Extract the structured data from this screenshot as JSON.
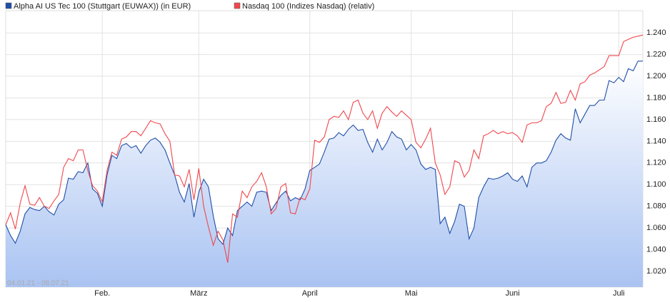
{
  "chart_data": {
    "type": "line",
    "date_range": "04.01.21 - 08.07.21",
    "series": [
      {
        "name": "Alpha AI US Tec 100 (Stuttgart (EUWAX)) (in EUR)",
        "color": "#1f4fa8",
        "area": true,
        "values": [
          1.063,
          1.053,
          1.046,
          1.057,
          1.073,
          1.079,
          1.077,
          1.076,
          1.08,
          1.075,
          1.072,
          1.082,
          1.086,
          1.106,
          1.105,
          1.112,
          1.111,
          1.12,
          1.096,
          1.092,
          1.08,
          1.109,
          1.127,
          1.124,
          1.136,
          1.138,
          1.134,
          1.136,
          1.129,
          1.136,
          1.141,
          1.143,
          1.139,
          1.132,
          1.12,
          1.109,
          1.093,
          1.084,
          1.101,
          1.07,
          1.093,
          1.105,
          1.098,
          1.071,
          1.05,
          1.045,
          1.06,
          1.053,
          1.076,
          1.08,
          1.084,
          1.08,
          1.093,
          1.094,
          1.093,
          1.076,
          1.083,
          1.09,
          1.094,
          1.085,
          1.088,
          1.086,
          1.096,
          1.113,
          1.116,
          1.119,
          1.13,
          1.142,
          1.143,
          1.148,
          1.145,
          1.151,
          1.155,
          1.15,
          1.151,
          1.139,
          1.13,
          1.142,
          1.132,
          1.139,
          1.149,
          1.144,
          1.142,
          1.132,
          1.137,
          1.132,
          1.119,
          1.114,
          1.116,
          1.114,
          1.064,
          1.07,
          1.055,
          1.066,
          1.082,
          1.08,
          1.05,
          1.06,
          1.088,
          1.098,
          1.106,
          1.105,
          1.106,
          1.108,
          1.111,
          1.105,
          1.103,
          1.108,
          1.098,
          1.116,
          1.12,
          1.12,
          1.122,
          1.13,
          1.141,
          1.147,
          1.143,
          1.141,
          1.17,
          1.157,
          1.165,
          1.173,
          1.173,
          1.178,
          1.178,
          1.196,
          1.194,
          1.199,
          1.195,
          1.207,
          1.205,
          1.214,
          1.214
        ]
      },
      {
        "name": "Nasdaq 100 (Indizes Nasdaq) (relativ)",
        "color": "#f0474d",
        "area": false,
        "values": [
          1.063,
          1.074,
          1.059,
          1.083,
          1.099,
          1.082,
          1.081,
          1.088,
          1.08,
          1.078,
          1.085,
          1.091,
          1.116,
          1.124,
          1.122,
          1.132,
          1.132,
          1.113,
          1.099,
          1.094,
          1.084,
          1.113,
          1.13,
          1.127,
          1.142,
          1.144,
          1.149,
          1.149,
          1.145,
          1.152,
          1.159,
          1.157,
          1.156,
          1.147,
          1.14,
          1.109,
          1.108,
          1.098,
          1.114,
          1.086,
          1.115,
          1.08,
          1.061,
          1.044,
          1.057,
          1.049,
          1.028,
          1.073,
          1.07,
          1.094,
          1.088,
          1.098,
          1.103,
          1.111,
          1.098,
          1.073,
          1.078,
          1.098,
          1.101,
          1.074,
          1.073,
          1.088,
          1.086,
          1.096,
          1.141,
          1.139,
          1.144,
          1.16,
          1.163,
          1.162,
          1.168,
          1.16,
          1.176,
          1.178,
          1.166,
          1.16,
          1.168,
          1.152,
          1.166,
          1.172,
          1.167,
          1.163,
          1.168,
          1.164,
          1.16,
          1.139,
          1.134,
          1.142,
          1.152,
          1.12,
          1.109,
          1.091,
          1.098,
          1.122,
          1.12,
          1.107,
          1.113,
          1.132,
          1.124,
          1.145,
          1.147,
          1.15,
          1.147,
          1.149,
          1.147,
          1.148,
          1.145,
          1.139,
          1.155,
          1.157,
          1.157,
          1.159,
          1.172,
          1.175,
          1.185,
          1.175,
          1.176,
          1.187,
          1.178,
          1.193,
          1.195,
          1.201,
          1.203,
          1.206,
          1.209,
          1.219,
          1.219,
          1.219,
          1.232,
          1.234,
          1.236,
          1.237,
          1.238
        ]
      }
    ],
    "xlim": [
      0,
      132
    ],
    "xticks": [
      {
        "value": 20,
        "label": "Feb."
      },
      {
        "value": 40,
        "label": "März"
      },
      {
        "value": 63,
        "label": "April"
      },
      {
        "value": 84,
        "label": "Mai"
      },
      {
        "value": 105,
        "label": "Juni"
      },
      {
        "value": 127,
        "label": "Juli"
      }
    ],
    "ylim": [
      1.0055,
      1.2605
    ],
    "yticks": [
      {
        "value": 1.02,
        "label": "1.020"
      },
      {
        "value": 1.04,
        "label": "1.040"
      },
      {
        "value": 1.06,
        "label": "1.060"
      },
      {
        "value": 1.08,
        "label": "1.080"
      },
      {
        "value": 1.1,
        "label": "1.100"
      },
      {
        "value": 1.12,
        "label": "1.120"
      },
      {
        "value": 1.14,
        "label": "1.140"
      },
      {
        "value": 1.16,
        "label": "1.160"
      },
      {
        "value": 1.18,
        "label": "1.180"
      },
      {
        "value": 1.2,
        "label": "1.200"
      },
      {
        "value": 1.22,
        "label": "1.220"
      },
      {
        "value": 1.24,
        "label": "1.240"
      }
    ],
    "grid": true
  }
}
